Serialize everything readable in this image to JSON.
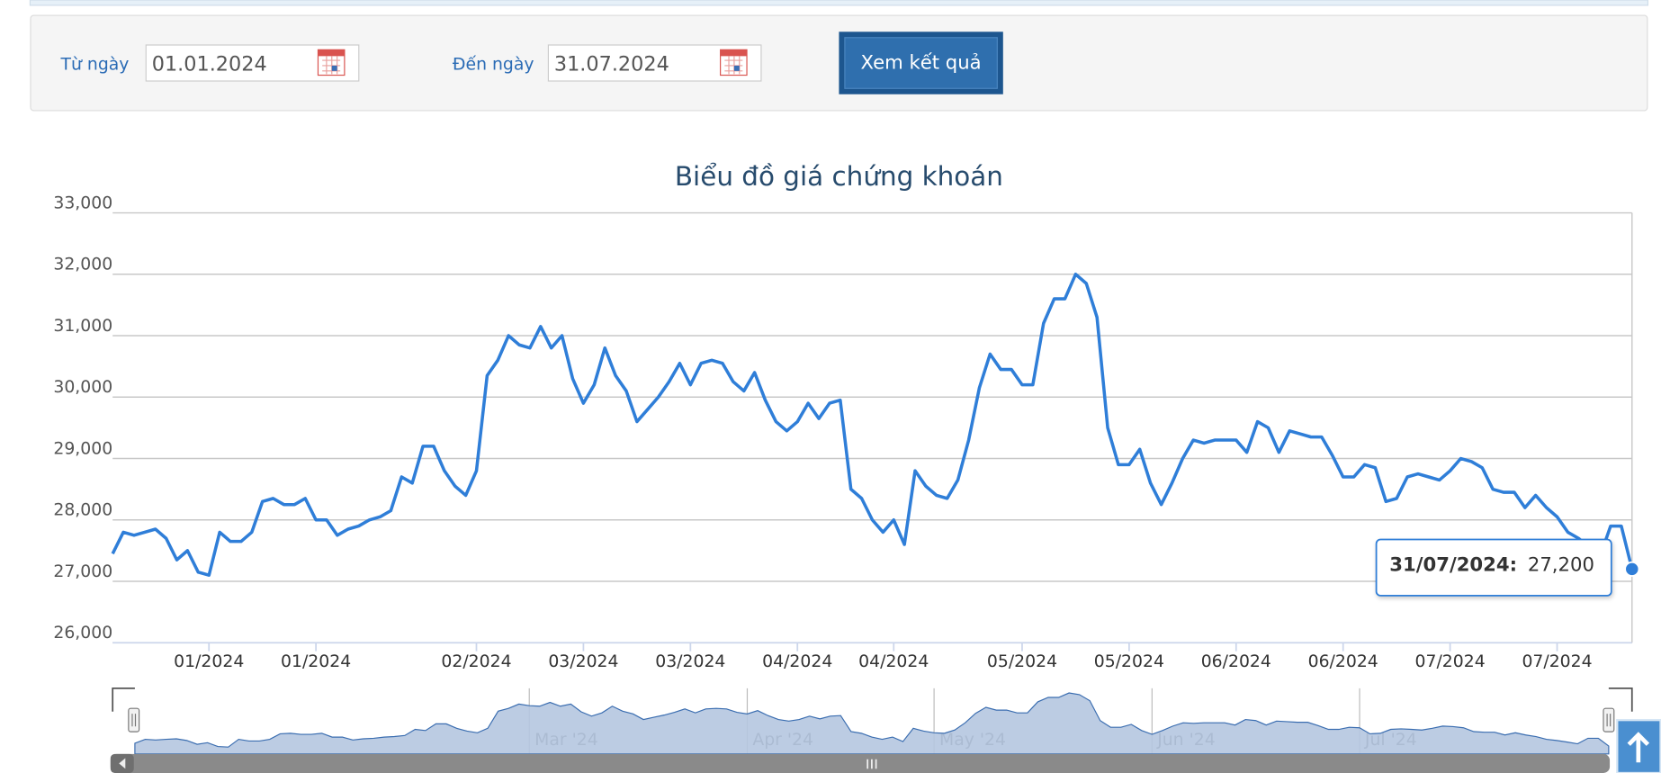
{
  "form": {
    "from_label": "Từ ngày",
    "from_value": "01.01.2024",
    "to_label": "Đến ngày",
    "to_value": "31.07.2024",
    "button": "Xem kết quả"
  },
  "chart_data": {
    "type": "line",
    "title": "Biểu đồ giá chứng khoán",
    "series": [
      {
        "color": "#2f7ed8",
        "values": [
          27450,
          27800,
          27750,
          27800,
          27850,
          27700,
          27350,
          27500,
          27150,
          27100,
          27800,
          27650,
          27650,
          27800,
          28300,
          28350,
          28250,
          28250,
          28350,
          28000,
          28000,
          27750,
          27850,
          27900,
          28000,
          28050,
          28150,
          28700,
          28600,
          29200,
          29200,
          28800,
          28550,
          28400,
          28800,
          30350,
          30600,
          31000,
          30850,
          30800,
          31150,
          30800,
          31000,
          30300,
          29900,
          30200,
          30800,
          30350,
          30100,
          29600,
          29800,
          30000,
          30250,
          30550,
          30200,
          30550,
          30600,
          30550,
          30250,
          30100,
          30400,
          29950,
          29600,
          29450,
          29600,
          29900,
          29650,
          29900,
          29950,
          28500,
          28350,
          28000,
          27800,
          28000,
          27600,
          28800,
          28550,
          28400,
          28350,
          28650,
          29300,
          30150,
          30700,
          30450,
          30450,
          30200,
          30200,
          31200,
          31600,
          31600,
          32000,
          31850,
          31300,
          29500,
          28900,
          28900,
          29150,
          28600,
          28250,
          28600,
          29000,
          29300,
          29250,
          29300,
          29300,
          29300,
          29100,
          29600,
          29500,
          29100,
          29450,
          29400,
          29350,
          29350,
          29050,
          28700,
          28700,
          28900,
          28850,
          28300,
          28350,
          28700,
          28750,
          28700,
          28650,
          28800,
          29000,
          28950,
          28850,
          28500,
          28450,
          28450,
          28200,
          28400,
          28200,
          28050,
          27800,
          27700,
          27550,
          27400,
          27900,
          27900,
          27200
        ]
      }
    ],
    "ylim": [
      26000,
      33000
    ],
    "yticks": [
      {
        "value": 26000,
        "label": "26,000"
      },
      {
        "value": 27000,
        "label": "27,000"
      },
      {
        "value": 28000,
        "label": "28,000"
      },
      {
        "value": 29000,
        "label": "29,000"
      },
      {
        "value": 30000,
        "label": "30,000"
      },
      {
        "value": 31000,
        "label": "31,000"
      },
      {
        "value": 32000,
        "label": "32,000"
      },
      {
        "value": 33000,
        "label": "33,000"
      }
    ],
    "xticks": [
      {
        "value": 9,
        "label": "01/2024"
      },
      {
        "value": 19,
        "label": "01/2024"
      },
      {
        "value": 34,
        "label": "02/2024"
      },
      {
        "value": 44,
        "label": "03/2024"
      },
      {
        "value": 54,
        "label": "03/2024"
      },
      {
        "value": 64,
        "label": "04/2024"
      },
      {
        "value": 73,
        "label": "04/2024"
      },
      {
        "value": 85,
        "label": "05/2024"
      },
      {
        "value": 95,
        "label": "05/2024"
      },
      {
        "value": 105,
        "label": "06/2024"
      },
      {
        "value": 115,
        "label": "06/2024"
      },
      {
        "value": 125,
        "label": "07/2024"
      },
      {
        "value": 135,
        "label": "07/2024"
      }
    ],
    "grid": true,
    "tooltip": {
      "date": "31/07/2024:",
      "value": 27200,
      "value_label": "27,200"
    },
    "navigator": {
      "labels": [
        {
          "value": 38,
          "label": "Mar '24"
        },
        {
          "value": 59,
          "label": "Apr '24"
        },
        {
          "value": 77,
          "label": "May '24"
        },
        {
          "value": 98,
          "label": "Jun '24"
        },
        {
          "value": 118,
          "label": "Jul '24"
        }
      ]
    }
  }
}
